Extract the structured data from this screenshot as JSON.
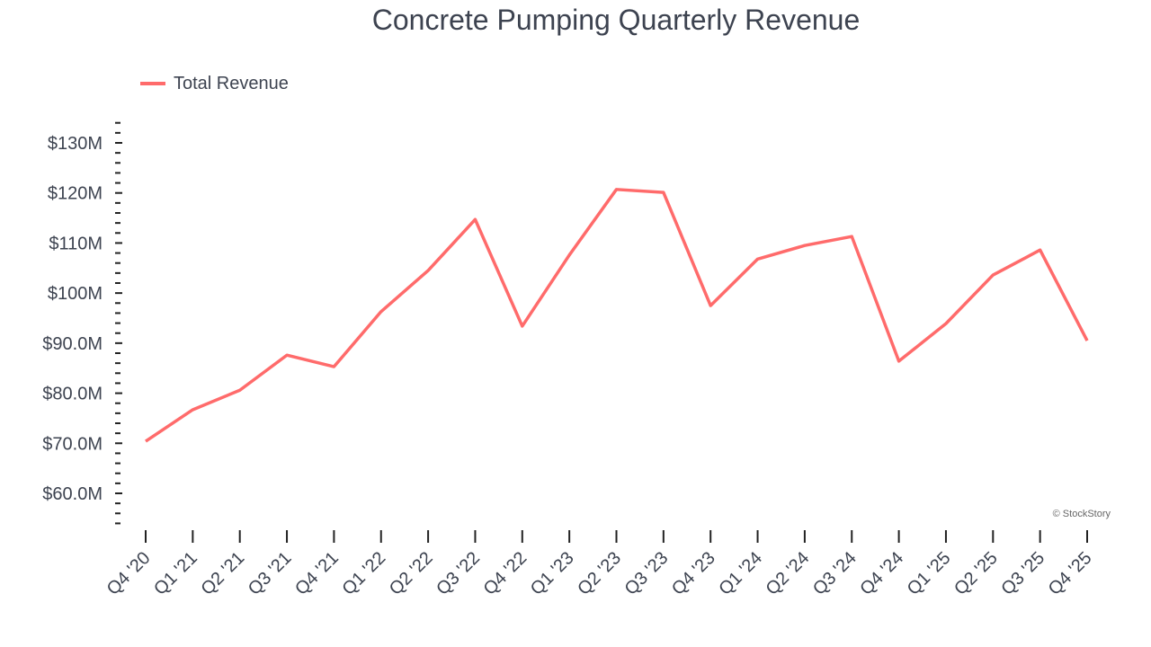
{
  "chart_data": {
    "type": "line",
    "title": "Concrete Pumping Quarterly Revenue",
    "xlabel": "",
    "ylabel": "",
    "categories": [
      "Q4 '20",
      "Q1 '21",
      "Q2 '21",
      "Q3 '21",
      "Q4 '21",
      "Q1 '22",
      "Q2 '22",
      "Q3 '22",
      "Q4 '22",
      "Q1 '23",
      "Q2 '23",
      "Q3 '23",
      "Q4 '23",
      "Q1 '24",
      "Q2 '24",
      "Q3 '24",
      "Q4 '24",
      "Q1 '25",
      "Q2 '25",
      "Q3 '25",
      "Q4 '25"
    ],
    "series": [
      {
        "name": "Total Revenue",
        "color": "#ff6b6b",
        "values": [
          70.4,
          76.7,
          80.6,
          87.6,
          85.3,
          96.3,
          104.5,
          114.7,
          93.4,
          107.6,
          120.7,
          120.1,
          97.5,
          106.8,
          109.5,
          111.3,
          86.4,
          93.9,
          103.6,
          108.6,
          90.5
        ]
      }
    ],
    "yunit": "$M",
    "ylim": [
      54,
      134
    ],
    "yticks": [
      60,
      70,
      80,
      90,
      100,
      110,
      120,
      130
    ],
    "ytick_labels": [
      "$60.0M",
      "$70.0M",
      "$80.0M",
      "$90.0M",
      "$100M",
      "$110M",
      "$120M",
      "$130M"
    ],
    "grid": false,
    "legend_position": "top-left"
  },
  "credit": "© StockStory"
}
